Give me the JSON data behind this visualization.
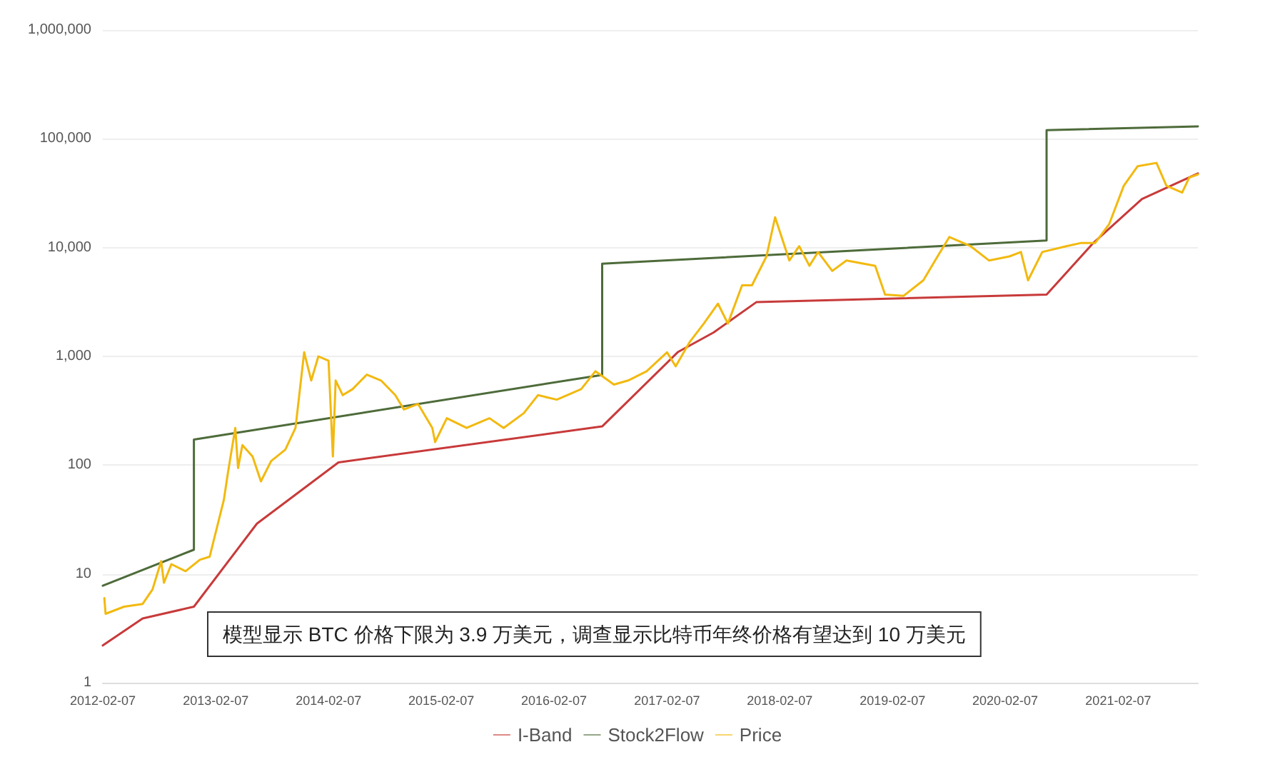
{
  "chart_data": {
    "type": "line",
    "annotations": [
      "模型显示 BTC 价格下限为 3.9 万美元，调查显示比特币年终价格有望达到 10 万美元"
    ],
    "series": [
      {
        "name": "I-Band",
        "color": "#c83a3a",
        "x": [
          "2012-02-07",
          "2012-06-15",
          "2012-11-28",
          "2013-06-20",
          "2014-03-11",
          "2016-07-12",
          "2017-03-15",
          "2017-07-08",
          "2017-11-24",
          "2020-06-20",
          "2020-11-18",
          "2021-04-25",
          "2021-10-23"
        ],
        "values": [
          2.2,
          3.9,
          5.0,
          29,
          106,
          227,
          1100,
          1660,
          3160,
          3700,
          11000,
          28000,
          48000
        ]
      },
      {
        "name": "Stock2Flow",
        "color": "#4e6b3a",
        "x": [
          "2012-02-07",
          "2012-11-28",
          "2012-11-28",
          "2016-07-12",
          "2016-07-12",
          "2020-06-20",
          "2020-06-20",
          "2021-10-23"
        ],
        "values": [
          7.8,
          16.7,
          172,
          676,
          7100,
          11600,
          120000,
          130000
        ]
      },
      {
        "name": "Price",
        "color": "#f2b90f",
        "x": [
          "2012-02-12",
          "2012-02-16",
          "2012-04-16",
          "2012-06-15",
          "2012-07-17",
          "2012-08-14",
          "2012-08-23",
          "2012-09-16",
          "2012-11-01",
          "2012-12-17",
          "2013-01-18",
          "2013-03-05",
          "2013-03-19",
          "2013-04-11",
          "2013-04-20",
          "2013-05-04",
          "2013-06-06",
          "2013-07-03",
          "2013-08-05",
          "2013-09-20",
          "2013-10-23",
          "2013-11-20",
          "2013-12-13",
          "2014-01-05",
          "2014-02-07",
          "2014-02-21",
          "2014-03-02",
          "2014-03-25",
          "2014-04-26",
          "2014-06-11",
          "2014-07-27",
          "2014-09-11",
          "2014-10-09",
          "2014-11-24",
          "2015-01-09",
          "2015-01-18",
          "2015-02-25",
          "2015-04-30",
          "2015-07-13",
          "2015-08-28",
          "2015-11-01",
          "2015-12-17",
          "2016-02-16",
          "2016-05-05",
          "2016-06-20",
          "2016-08-19",
          "2016-10-04",
          "2016-12-03",
          "2017-02-07",
          "2017-03-07",
          "2017-04-21",
          "2017-06-06",
          "2017-07-22",
          "2017-08-23",
          "2017-10-08",
          "2017-11-09",
          "2017-12-26",
          "2018-01-23",
          "2018-03-10",
          "2018-04-11",
          "2018-05-14",
          "2018-06-11",
          "2018-07-27",
          "2018-09-11",
          "2018-12-13",
          "2019-01-14",
          "2019-03-15",
          "2019-05-18",
          "2019-07-03",
          "2019-08-10",
          "2019-10-18",
          "2019-12-17",
          "2020-02-21",
          "2020-03-29",
          "2020-04-21",
          "2020-06-06",
          "2020-08-23",
          "2020-10-08",
          "2020-11-24",
          "2021-01-09",
          "2021-02-25",
          "2021-04-11",
          "2021-06-11",
          "2021-07-13",
          "2021-09-02",
          "2021-09-25",
          "2021-10-23"
        ],
        "values": [
          6.0,
          4.3,
          5.0,
          5.3,
          7.2,
          13.1,
          8.3,
          12.3,
          10.6,
          13.5,
          14.4,
          48,
          88,
          220,
          94,
          153,
          120,
          71,
          109,
          139,
          220,
          1090,
          600,
          1000,
          910,
          120,
          600,
          440,
          500,
          680,
          600,
          440,
          325,
          365,
          220,
          163,
          270,
          220,
          270,
          220,
          300,
          440,
          400,
          500,
          730,
          550,
          600,
          730,
          1090,
          810,
          1350,
          2000,
          3050,
          2000,
          4500,
          4500,
          8300,
          19000,
          7600,
          10300,
          6800,
          9100,
          6100,
          7600,
          6800,
          3700,
          3600,
          5000,
          8300,
          12500,
          10300,
          7600,
          8300,
          9100,
          5000,
          9100,
          10300,
          11000,
          11000,
          16500,
          37000,
          56000,
          60000,
          37000,
          32000,
          44000,
          47000
        ]
      }
    ],
    "xlim": [
      "2012-02-07",
      "2021-10-23"
    ],
    "xticks": [
      "2012-02-07",
      "2013-02-07",
      "2014-02-07",
      "2015-02-07",
      "2016-02-07",
      "2017-02-07",
      "2018-02-07",
      "2019-02-07",
      "2020-02-07",
      "2021-02-07"
    ],
    "ylim": [
      1,
      1000000
    ],
    "yticks": [
      1,
      10,
      100,
      {
        "value": 1000,
        "label": "1,000"
      },
      {
        "value": 10000,
        "label": "10,000"
      },
      {
        "value": 100000,
        "label": "100,000"
      },
      {
        "value": 1000000,
        "label": "1,000,000"
      }
    ],
    "log": true,
    "grid": "y",
    "legend": "bottom",
    "marker": "none",
    "line_style": "solid"
  }
}
